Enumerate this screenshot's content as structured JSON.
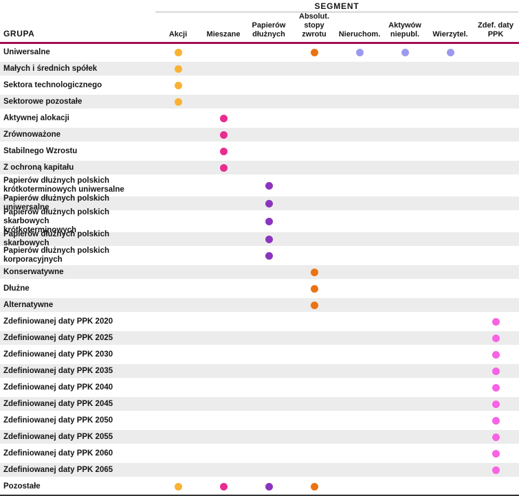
{
  "header": {
    "grupa_label": "GRUPA",
    "segment_label": "SEGMENT"
  },
  "colors": {
    "header_rule": "#a50d52",
    "segment_rule": "#b3b3b3",
    "bottom_rule": "#333333",
    "row_alt_background": "#ececec",
    "akcji_dot": "#f9b233",
    "mieszane_dot": "#ea2b90",
    "papierow_dot": "#8a35bd",
    "absolut_dot": "#eb7311",
    "periwinkle_dot": "#9c9aee",
    "ppk_dot": "#f763e4"
  },
  "chart_data": {
    "type": "table",
    "title": "",
    "group_axis_label": "GRUPA",
    "segment_axis_label": "SEGMENT",
    "columns": [
      {
        "id": "akcji",
        "label": "Akcji",
        "color": "#f9b233"
      },
      {
        "id": "mieszane",
        "label": "Mieszane",
        "color": "#ea2b90"
      },
      {
        "id": "papierow",
        "label": "Papierów\ndłużnych",
        "color": "#8a35bd"
      },
      {
        "id": "absolut",
        "label": "Absolut.\nstopy\nzwrotu",
        "color": "#eb7311"
      },
      {
        "id": "nieruchom",
        "label": "Nieruchom.",
        "color": "#9c9aee"
      },
      {
        "id": "aktywow",
        "label": "Aktywów\nniepubl.",
        "color": "#9c9aee"
      },
      {
        "id": "wierzytel",
        "label": "Wierzytel.",
        "color": "#9c9aee"
      },
      {
        "id": "ppk",
        "label": "Zdef. daty\nPPK",
        "color": "#f763e4"
      }
    ],
    "rows": [
      {
        "label": "Uniwersalne",
        "dots": [
          "akcji",
          "absolut",
          "nieruchom",
          "aktywow",
          "wierzytel"
        ]
      },
      {
        "label": "Małych i średnich spółek",
        "dots": [
          "akcji"
        ]
      },
      {
        "label": "Sektora technologicznego",
        "dots": [
          "akcji"
        ]
      },
      {
        "label": "Sektorowe pozostałe",
        "dots": [
          "akcji"
        ]
      },
      {
        "label": "Aktywnej alokacji",
        "dots": [
          "mieszane"
        ]
      },
      {
        "label": "Zrównoważone",
        "dots": [
          "mieszane"
        ]
      },
      {
        "label": "Stabilnego Wzrostu",
        "dots": [
          "mieszane"
        ]
      },
      {
        "label": "Z ochroną kapitału",
        "dots": [
          "mieszane"
        ]
      },
      {
        "label": "Papierów dłużnych polskich\nkrótkoterminowych uniwersalne",
        "dots": [
          "papierow"
        ]
      },
      {
        "label": "Papierów dłużnych polskich uniwersalne",
        "dots": [
          "papierow"
        ]
      },
      {
        "label": "Papierów dłużnych polskich skarbowych\nkrótkoterminowych",
        "dots": [
          "papierow"
        ]
      },
      {
        "label": "Papierów dłużnych polskich skarbowych",
        "dots": [
          "papierow"
        ]
      },
      {
        "label": "Papierów dłużnych polskich korporacyjnych",
        "dots": [
          "papierow"
        ]
      },
      {
        "label": "Konserwatywne",
        "dots": [
          "absolut"
        ]
      },
      {
        "label": "Dłużne",
        "dots": [
          "absolut"
        ]
      },
      {
        "label": "Alternatywne",
        "dots": [
          "absolut"
        ]
      },
      {
        "label": "Zdefiniowanej daty PPK 2020",
        "dots": [
          "ppk"
        ]
      },
      {
        "label": "Zdefiniowanej daty PPK 2025",
        "dots": [
          "ppk"
        ]
      },
      {
        "label": "Zdefiniowanej daty PPK 2030",
        "dots": [
          "ppk"
        ]
      },
      {
        "label": "Zdefiniowanej daty PPK 2035",
        "dots": [
          "ppk"
        ]
      },
      {
        "label": "Zdefiniowanej daty PPK 2040",
        "dots": [
          "ppk"
        ]
      },
      {
        "label": "Zdefiniowanej daty PPK 2045",
        "dots": [
          "ppk"
        ]
      },
      {
        "label": "Zdefiniowanej daty PPK 2050",
        "dots": [
          "ppk"
        ]
      },
      {
        "label": "Zdefiniowanej daty PPK 2055",
        "dots": [
          "ppk"
        ]
      },
      {
        "label": "Zdefiniowanej daty PPK 2060",
        "dots": [
          "ppk"
        ]
      },
      {
        "label": "Zdefiniowanej daty PPK 2065",
        "dots": [
          "ppk"
        ]
      },
      {
        "label": "Pozostałe",
        "dots": [
          "akcji",
          "mieszane",
          "papierow",
          "absolut"
        ]
      }
    ]
  }
}
